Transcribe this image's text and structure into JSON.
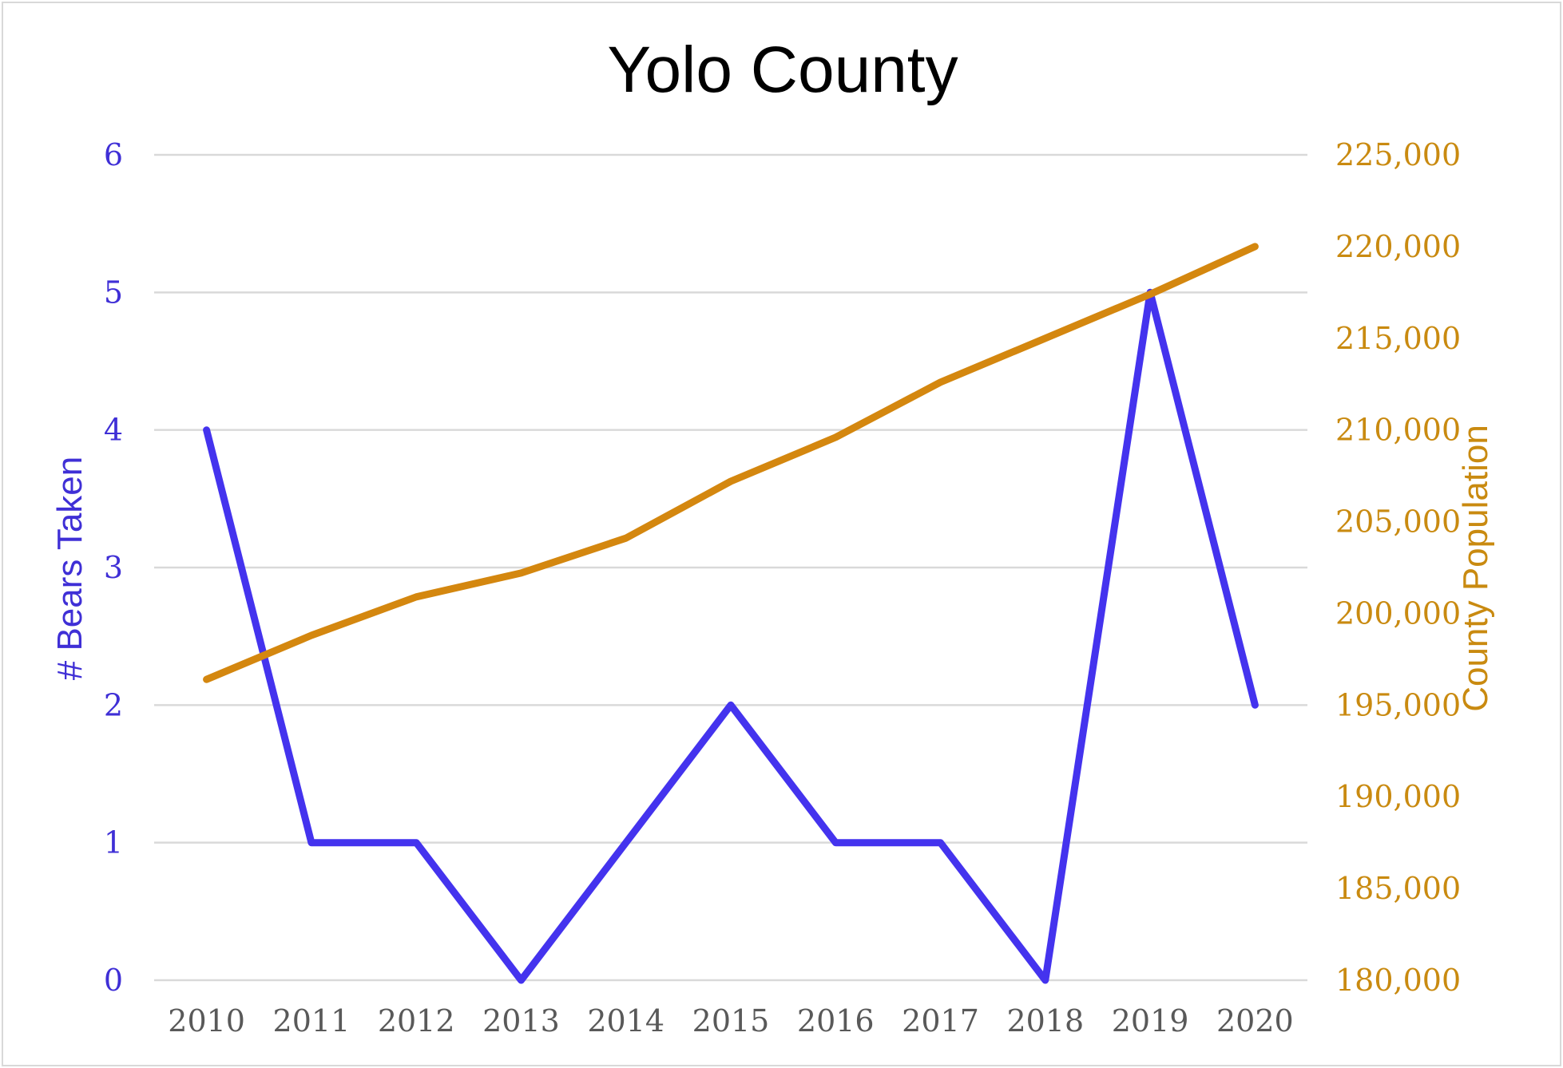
{
  "chart_data": {
    "type": "line",
    "title": "Yolo County",
    "xlabel": "",
    "ylabel": "# Bears Taken",
    "y2label": "County Population",
    "x": [
      "2010",
      "2011",
      "2012",
      "2013",
      "2014",
      "2015",
      "2016",
      "2017",
      "2018",
      "2019",
      "2020"
    ],
    "ylim": [
      0,
      6
    ],
    "y2lim": [
      180000,
      225000
    ],
    "yticks": [
      "0",
      "1",
      "2",
      "3",
      "4",
      "5",
      "6"
    ],
    "y2ticks": [
      "180,000",
      "185,000",
      "190,000",
      "195,000",
      "200,000",
      "205,000",
      "210,000",
      "215,000",
      "220,000",
      "225,000"
    ],
    "grid": true,
    "legend": "none",
    "series": [
      {
        "axis": "left",
        "color": "#4433ee",
        "values": [
          4,
          1,
          1,
          0,
          1,
          2,
          1,
          1,
          0,
          5,
          2
        ]
      },
      {
        "axis": "right",
        "color": "#d4870f",
        "values": [
          196400,
          198800,
          200900,
          202200,
          204100,
          207200,
          209600,
          212600,
          215000,
          217400,
          220000
        ]
      }
    ],
    "colors": {
      "left_axis": "#3f2fd6",
      "right_axis": "#c98a10",
      "grid": "#d9d9d9",
      "x_ticks": "#595959"
    }
  }
}
